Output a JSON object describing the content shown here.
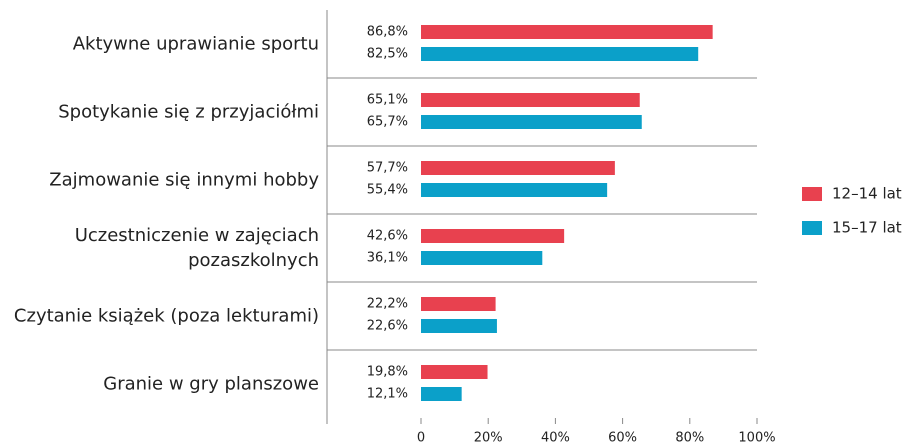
{
  "chart_data": {
    "type": "bar",
    "orientation": "horizontal",
    "categories": [
      "Aktywne uprawianie sportu",
      "Spotykanie się z przyjaciółmi",
      "Zajmowanie się innymi hobby",
      "Uczestniczenie w zajęciach\npozaszkolnych",
      "Czytanie książek (poza lekturami)",
      "Granie w gry planszowe"
    ],
    "series": [
      {
        "name": "12–14 lat",
        "color": "#e8414f",
        "values": [
          86.8,
          65.1,
          57.7,
          42.6,
          22.2,
          19.8
        ],
        "value_labels": [
          "86,8%",
          "65,1%",
          "57,7%",
          "42,6%",
          "22,2%",
          "19,8%"
        ]
      },
      {
        "name": "15–17 lat",
        "color": "#0ba0c9",
        "values": [
          82.5,
          65.7,
          55.4,
          36.1,
          22.6,
          12.1
        ],
        "value_labels": [
          "82,5%",
          "65,7%",
          "55,4%",
          "36,1%",
          "22,6%",
          "12,1%"
        ]
      }
    ],
    "xlim": [
      0,
      100
    ],
    "xticks": [
      0,
      {
        "value": 20,
        "label": "20%"
      },
      {
        "value": 40,
        "label": "40%"
      },
      {
        "value": 60,
        "label": "60%"
      },
      {
        "value": 80,
        "label": "80%"
      },
      {
        "value": 100,
        "label": "100%"
      }
    ],
    "legend": "right"
  }
}
